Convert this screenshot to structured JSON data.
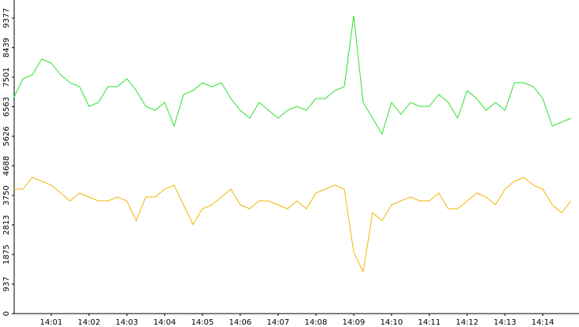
{
  "chart_data": {
    "type": "line",
    "categories": [
      null,
      null,
      null,
      null,
      "14:01",
      null,
      null,
      null,
      "14:02",
      null,
      null,
      null,
      "14:03",
      null,
      null,
      null,
      "14:04",
      null,
      null,
      null,
      "14:05",
      null,
      null,
      null,
      "14:06",
      null,
      null,
      null,
      "14:07",
      null,
      null,
      null,
      "14:08",
      null,
      null,
      null,
      "14:09",
      null,
      null,
      null,
      "14:10",
      null,
      null,
      null,
      "14:11",
      null,
      null,
      null,
      "14:12",
      null,
      null,
      null,
      "14:13",
      null,
      null,
      null,
      "14:14",
      null,
      null,
      null
    ],
    "series": [
      {
        "color": "#2ee02e",
        "values": [
          6825,
          7450,
          7575,
          8075,
          7950,
          7575,
          7325,
          7200,
          6575,
          6700,
          7200,
          7200,
          7450,
          7075,
          6575,
          6450,
          6700,
          5950,
          6950,
          7075,
          7325,
          7200,
          7325,
          6825,
          6450,
          6200,
          6700,
          6450,
          6200,
          6450,
          6575,
          6450,
          6825,
          6825,
          7075,
          7200,
          9450,
          6700,
          6200,
          5700,
          6700,
          6325,
          6700,
          6575,
          6575,
          6950,
          6700,
          6200,
          7075,
          6825,
          6450,
          6700,
          6450,
          7325,
          7325,
          7200,
          6825,
          5950,
          6075,
          6200
        ]
      },
      {
        "color": "#f2b600",
        "values": [
          3950,
          3950,
          4325,
          4200,
          4075,
          3825,
          3575,
          3825,
          3700,
          3575,
          3575,
          3700,
          3575,
          2950,
          3700,
          3700,
          3950,
          4075,
          3450,
          2825,
          3325,
          3450,
          3700,
          3950,
          3450,
          3325,
          3575,
          3575,
          3450,
          3325,
          3575,
          3325,
          3825,
          3950,
          4075,
          3950,
          1950,
          1325,
          3200,
          2950,
          3450,
          3575,
          3700,
          3575,
          3575,
          3825,
          3325,
          3325,
          3575,
          3825,
          3700,
          3450,
          3950,
          4200,
          4325,
          4075,
          3950,
          3450,
          3200,
          3575
        ]
      }
    ],
    "ylim": [
      0,
      9950
    ],
    "yticks": [
      0,
      937,
      1875,
      2813,
      3750,
      4688,
      5626,
      6563,
      7501,
      8439,
      9377
    ],
    "grid": false
  }
}
